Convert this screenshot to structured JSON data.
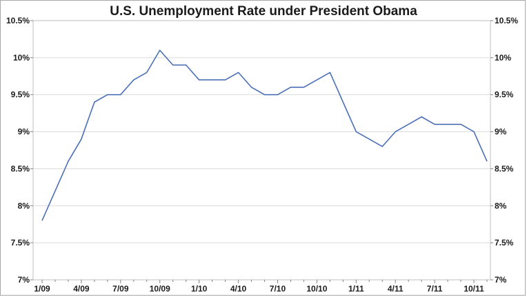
{
  "chart_data": {
    "type": "line",
    "title": "U.S. Unemployment Rate under President Obama",
    "xlabel": "",
    "ylabel": "",
    "ylim": [
      7,
      10.5
    ],
    "y_ticks": [
      10.5,
      10,
      9.5,
      9,
      8.5,
      8,
      7.5,
      7
    ],
    "y_tick_labels": [
      "10.5%",
      "10%",
      "9.5%",
      "9%",
      "8.5%",
      "8%",
      "7.5%",
      "7%"
    ],
    "x_tick_labels": [
      "1/09",
      "4/09",
      "7/09",
      "10/09",
      "1/10",
      "4/10",
      "7/10",
      "10/10",
      "1/11",
      "4/11",
      "7/11",
      "10/11"
    ],
    "grid": true,
    "line_color": "#4a6fb5",
    "series": [
      {
        "x": [
          "1/09",
          "2/09",
          "3/09",
          "4/09",
          "5/09",
          "6/09",
          "7/09",
          "8/09",
          "9/09",
          "10/09",
          "11/09",
          "12/09",
          "1/10",
          "2/10",
          "3/10",
          "4/10",
          "5/10",
          "6/10",
          "7/10",
          "8/10",
          "9/10",
          "10/10",
          "11/10",
          "12/10",
          "1/11",
          "2/11",
          "3/11",
          "4/11",
          "5/11",
          "6/11",
          "7/11",
          "8/11",
          "9/11",
          "10/11",
          "11/11"
        ],
        "values": [
          7.8,
          8.2,
          8.6,
          8.9,
          9.4,
          9.5,
          9.5,
          9.7,
          9.8,
          10.1,
          9.9,
          9.9,
          9.7,
          9.7,
          9.7,
          9.8,
          9.6,
          9.5,
          9.5,
          9.6,
          9.6,
          9.7,
          9.8,
          9.4,
          9.0,
          8.9,
          8.8,
          9.0,
          9.1,
          9.2,
          9.1,
          9.1,
          9.1,
          9.0,
          8.6
        ]
      }
    ]
  }
}
